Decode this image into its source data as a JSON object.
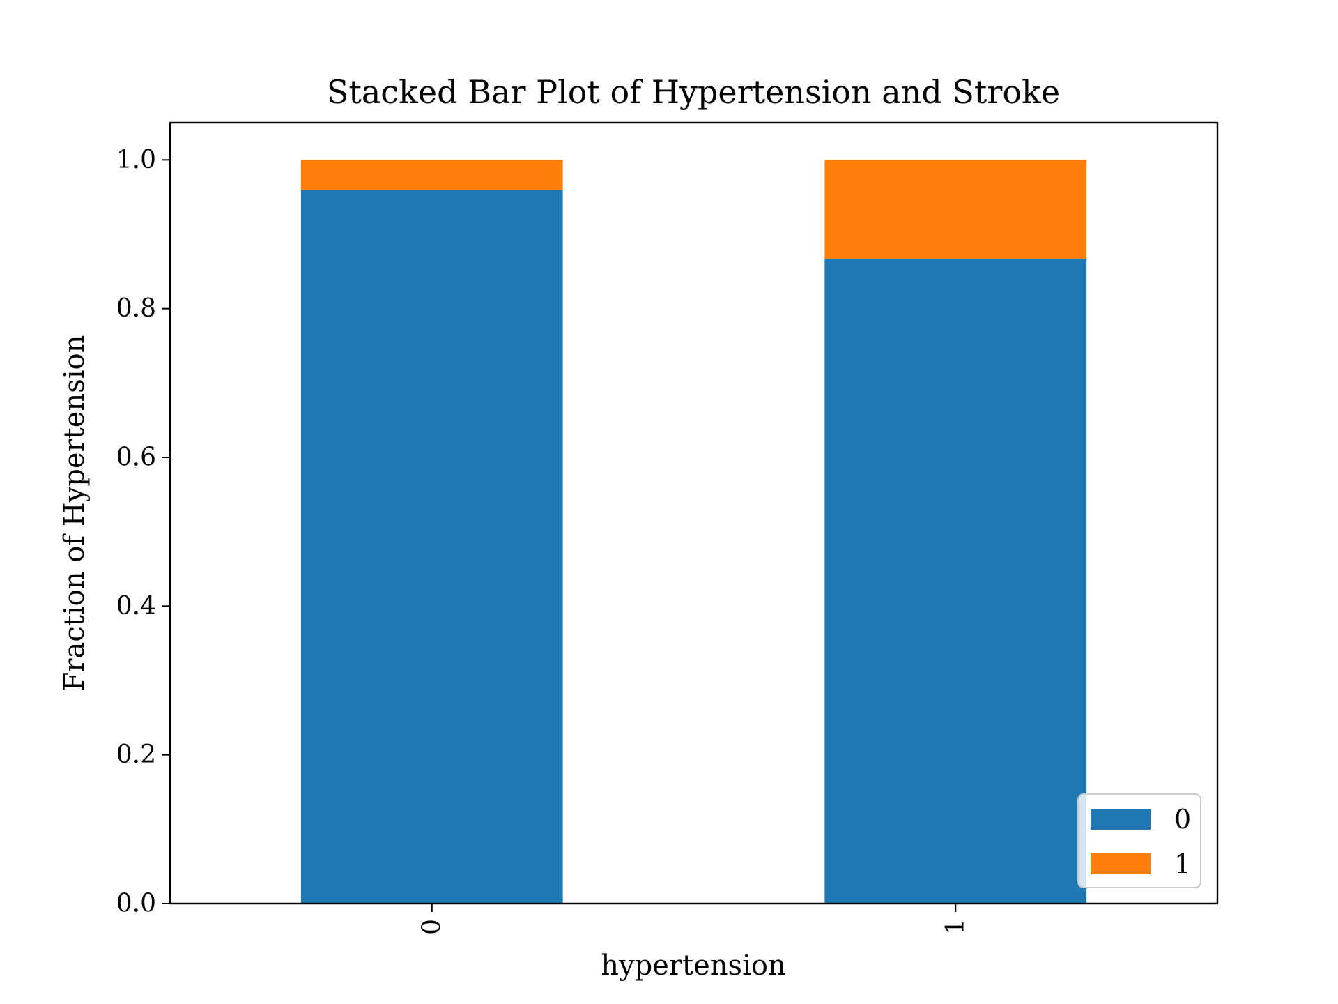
{
  "chart_data": {
    "type": "bar",
    "stacked": true,
    "title": "Stacked Bar Plot of Hypertension and Stroke",
    "xlabel": "hypertension",
    "ylabel": "Fraction of Hypertension",
    "categories": [
      "0",
      "1"
    ],
    "series": [
      {
        "name": "0",
        "color": "#1f77b4",
        "values": [
          0.96,
          0.867
        ]
      },
      {
        "name": "1",
        "color": "#ff7f0e",
        "values": [
          0.04,
          0.133
        ]
      }
    ],
    "ylim": [
      0,
      1.05
    ],
    "yticks": [
      0.0,
      0.2,
      0.4,
      0.6,
      0.8,
      1.0
    ],
    "ytick_labels": [
      "0.0",
      "0.2",
      "0.4",
      "0.6",
      "0.8",
      "1.0"
    ],
    "xtick_rotation": 90,
    "grid": false,
    "legend_position": "lower-right"
  }
}
